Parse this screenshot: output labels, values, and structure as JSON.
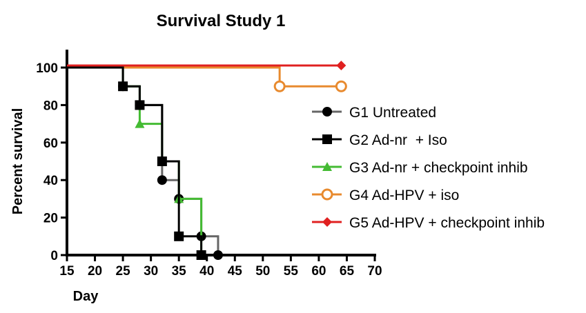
{
  "chart_data": {
    "type": "line",
    "subtype": "kaplan-meier step",
    "title": "Survival Study 1",
    "xlabel": "Day",
    "ylabel": "Percent survival",
    "xlim": [
      15,
      70
    ],
    "ylim": [
      0,
      100
    ],
    "xticks": [
      15,
      20,
      25,
      30,
      35,
      40,
      45,
      50,
      55,
      60,
      65,
      70
    ],
    "yticks": [
      0,
      20,
      40,
      60,
      80,
      100
    ],
    "legend_position": "right",
    "series": [
      {
        "name": "G1 Untreated",
        "color": "#666666",
        "marker": "circle",
        "x": [
          15,
          25,
          28,
          32,
          35,
          39,
          42
        ],
        "y": [
          100,
          90,
          80,
          40,
          30,
          10,
          0
        ]
      },
      {
        "name": "G2 Ad-nr  + Iso",
        "color": "#000000",
        "marker": "square",
        "x": [
          15,
          25,
          28,
          32,
          35,
          39
        ],
        "y": [
          100,
          90,
          80,
          50,
          10,
          0
        ]
      },
      {
        "name": "G3 Ad-nr + checkpoint inhib",
        "color": "#44bb33",
        "marker": "triangle",
        "x": [
          15,
          25,
          28,
          32,
          35,
          39
        ],
        "y": [
          100,
          90,
          70,
          50,
          30,
          0
        ]
      },
      {
        "name": "G4 Ad-HPV + iso",
        "color": "#e88a2e",
        "marker": "open-circle",
        "x": [
          15,
          53,
          64
        ],
        "y": [
          100,
          90,
          90
        ]
      },
      {
        "name": "G5 Ad-HPV + checkpoint inhib",
        "color": "#e02020",
        "marker": "diamond",
        "x": [
          15,
          64
        ],
        "y": [
          100,
          100
        ]
      }
    ]
  }
}
